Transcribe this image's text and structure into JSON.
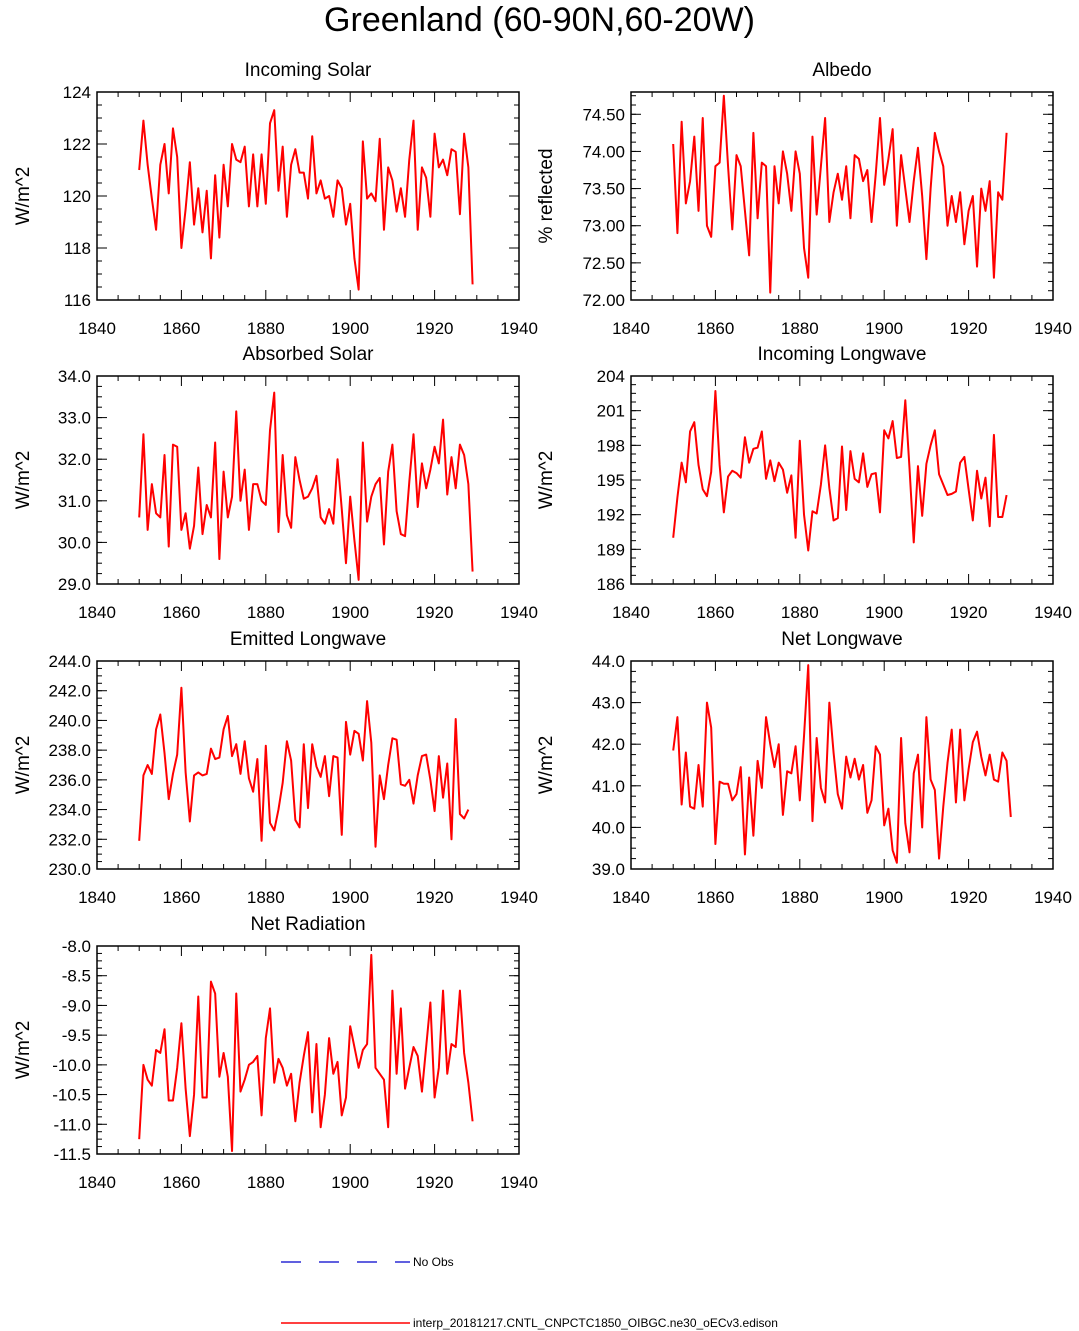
{
  "title": "Greenland (60-90N,60-20W)",
  "colors": {
    "model": "#ff0000",
    "obs": "#0000cc",
    "axis": "#000000"
  },
  "legend": {
    "obs_label": "No Obs",
    "model_label": "interp_20181217.CNTL_CNPCTC1850_OIBGC.ne30_oECv3.edison"
  },
  "chart_data": [
    {
      "type": "line",
      "title": "Incoming Solar",
      "ylabel": "W/m^2",
      "ylabel_side": "left",
      "xlim": [
        1840,
        1940
      ],
      "ylim": [
        116,
        124
      ],
      "xticks": [
        1840,
        1860,
        1880,
        1900,
        1920,
        1940
      ],
      "yticks": [
        116,
        118,
        120,
        122,
        124
      ],
      "yticklabels": [
        "116",
        "118",
        "120",
        "122",
        "124"
      ],
      "x_start": 1850,
      "series": [
        {
          "name": "interp_20181217.CNTL_CNPCTC1850_OIBGC.ne30_oECv3.edison",
          "values": [
            121.0,
            122.9,
            121.2,
            119.9,
            118.7,
            121.2,
            122.0,
            120.1,
            122.6,
            121.5,
            118.0,
            119.5,
            121.3,
            118.9,
            120.3,
            118.6,
            120.2,
            117.6,
            120.8,
            118.4,
            121.2,
            119.6,
            122.0,
            121.4,
            121.3,
            121.9,
            119.6,
            121.6,
            119.6,
            121.6,
            119.7,
            122.8,
            123.3,
            120.2,
            121.9,
            119.2,
            121.2,
            121.8,
            120.9,
            120.9,
            119.9,
            122.3,
            120.1,
            120.6,
            119.9,
            120.0,
            119.2,
            120.6,
            120.3,
            118.9,
            119.7,
            117.6,
            116.4,
            122.1,
            119.9,
            120.1,
            119.8,
            122.2,
            118.7,
            121.1,
            120.6,
            119.4,
            120.3,
            119.2,
            121.4,
            122.9,
            118.7,
            121.1,
            120.7,
            119.2,
            122.4,
            121.1,
            121.4,
            120.8,
            121.8,
            121.7,
            119.3,
            122.4,
            121.1,
            116.6
          ]
        }
      ]
    },
    {
      "type": "line",
      "title": "Albedo",
      "ylabel": "% reflected",
      "ylabel_side": "left",
      "xlim": [
        1840,
        1940
      ],
      "ylim": [
        72.0,
        74.8
      ],
      "xticks": [
        1840,
        1860,
        1880,
        1900,
        1920,
        1940
      ],
      "yticks": [
        72.0,
        72.5,
        73.0,
        73.5,
        74.0,
        74.5
      ],
      "yticklabels": [
        "72.00",
        "72.50",
        "73.00",
        "73.50",
        "74.00",
        "74.50"
      ],
      "x_start": 1850,
      "series": [
        {
          "name": "interp_20181217.CNTL_CNPCTC1850_OIBGC.ne30_oECv3.edison",
          "values": [
            74.1,
            72.9,
            74.4,
            73.3,
            73.6,
            74.2,
            73.2,
            74.45,
            73.0,
            72.85,
            73.8,
            73.85,
            74.75,
            73.8,
            72.95,
            73.95,
            73.8,
            73.2,
            72.6,
            74.25,
            73.1,
            73.85,
            73.8,
            72.1,
            73.8,
            73.3,
            74.0,
            73.7,
            73.2,
            74.0,
            73.7,
            72.7,
            72.3,
            74.2,
            73.15,
            73.8,
            74.45,
            73.05,
            73.45,
            73.7,
            73.35,
            73.8,
            73.1,
            73.95,
            73.9,
            73.6,
            73.75,
            73.05,
            73.7,
            74.45,
            73.55,
            73.9,
            74.3,
            73.0,
            73.95,
            73.5,
            73.05,
            73.6,
            74.05,
            73.4,
            72.55,
            73.5,
            74.25,
            74.0,
            73.8,
            73.0,
            73.4,
            73.05,
            73.45,
            72.75,
            73.2,
            73.4,
            72.45,
            73.5,
            73.2,
            73.6,
            72.3,
            73.45,
            73.35,
            74.25
          ]
        }
      ]
    },
    {
      "type": "line",
      "title": "Absorbed Solar",
      "ylabel": "W/m^2",
      "ylabel_side": "left",
      "xlim": [
        1840,
        1940
      ],
      "ylim": [
        29.0,
        34.0
      ],
      "xticks": [
        1840,
        1860,
        1880,
        1900,
        1920,
        1940
      ],
      "yticks": [
        29.0,
        30.0,
        31.0,
        32.0,
        33.0,
        34.0
      ],
      "yticklabels": [
        "29.0",
        "30.0",
        "31.0",
        "32.0",
        "33.0",
        "34.0"
      ],
      "x_start": 1850,
      "series": [
        {
          "name": "interp_20181217.CNTL_CNPCTC1850_OIBGC.ne30_oECv3.edison",
          "values": [
            30.6,
            32.6,
            30.3,
            31.4,
            30.7,
            30.6,
            32.1,
            29.9,
            32.35,
            32.3,
            30.3,
            30.7,
            29.85,
            30.4,
            31.8,
            30.2,
            30.9,
            30.6,
            32.4,
            29.6,
            31.7,
            30.6,
            31.1,
            33.15,
            31.0,
            31.75,
            30.3,
            31.4,
            31.4,
            31.0,
            30.9,
            32.7,
            33.6,
            30.25,
            32.1,
            30.65,
            30.35,
            32.05,
            31.5,
            31.05,
            31.1,
            31.3,
            31.6,
            30.6,
            30.45,
            30.8,
            30.45,
            32.0,
            30.8,
            29.5,
            31.1,
            30.05,
            29.1,
            32.4,
            30.5,
            31.1,
            31.4,
            31.55,
            29.95,
            31.7,
            32.35,
            30.75,
            30.2,
            30.15,
            31.45,
            32.6,
            30.85,
            31.9,
            31.3,
            31.75,
            32.3,
            31.9,
            32.95,
            31.15,
            32.05,
            31.3,
            32.35,
            32.1,
            31.4,
            29.3
          ]
        }
      ]
    },
    {
      "type": "line",
      "title": "Incoming Longwave",
      "ylabel": "W/m^2",
      "ylabel_side": "left",
      "xlim": [
        1840,
        1940
      ],
      "ylim": [
        186,
        204
      ],
      "xticks": [
        1840,
        1860,
        1880,
        1900,
        1920,
        1940
      ],
      "yticks": [
        186,
        189,
        192,
        195,
        198,
        201,
        204
      ],
      "yticklabels": [
        "186",
        "189",
        "192",
        "195",
        "198",
        "201",
        "204"
      ],
      "x_start": 1850,
      "series": [
        {
          "name": "interp_20181217.CNTL_CNPCTC1850_OIBGC.ne30_oECv3.edison",
          "values": [
            190.0,
            193.5,
            196.5,
            194.8,
            199.2,
            200.0,
            196.3,
            194.2,
            193.6,
            195.7,
            202.7,
            196.3,
            192.2,
            195.3,
            195.8,
            195.6,
            195.2,
            198.7,
            196.5,
            197.7,
            197.8,
            199.2,
            195.1,
            196.7,
            194.9,
            196.5,
            195.9,
            193.9,
            195.4,
            190.0,
            198.4,
            192.0,
            188.9,
            192.3,
            192.1,
            194.6,
            198.0,
            194.3,
            191.5,
            191.7,
            197.9,
            192.4,
            197.5,
            195.1,
            194.8,
            197.3,
            194.4,
            195.5,
            195.6,
            192.2,
            199.3,
            198.6,
            200.1,
            196.9,
            197.0,
            201.9,
            196.0,
            189.6,
            196.2,
            191.9,
            196.4,
            198.0,
            199.3,
            195.5,
            194.6,
            193.7,
            193.8,
            194.0,
            196.5,
            197.0,
            194.2,
            191.5,
            195.8,
            193.4,
            195.2,
            191.0,
            198.9,
            191.8,
            191.8,
            193.7
          ]
        }
      ]
    },
    {
      "type": "line",
      "title": "Emitted Longwave",
      "ylabel": "W/m^2",
      "ylabel_side": "left",
      "xlim": [
        1840,
        1940
      ],
      "ylim": [
        230,
        244
      ],
      "xticks": [
        1840,
        1860,
        1880,
        1900,
        1920,
        1940
      ],
      "yticks": [
        230,
        232,
        234,
        236,
        238,
        240,
        242,
        244
      ],
      "yticklabels": [
        "230.0",
        "232.0",
        "234.0",
        "236.0",
        "238.0",
        "240.0",
        "242.0",
        "244.0"
      ],
      "x_start": 1850,
      "series": [
        {
          "name": "interp_20181217.CNTL_CNPCTC1850_OIBGC.ne30_oECv3.edison",
          "values": [
            231.9,
            236.3,
            237.0,
            236.4,
            239.4,
            240.4,
            237.8,
            234.7,
            236.4,
            237.7,
            242.2,
            236.5,
            233.2,
            236.3,
            236.5,
            236.3,
            236.4,
            238.1,
            237.4,
            237.5,
            239.4,
            240.3,
            237.6,
            238.4,
            236.4,
            238.6,
            236.1,
            235.2,
            237.4,
            231.9,
            238.3,
            233.1,
            232.6,
            234.0,
            235.8,
            238.6,
            237.3,
            233.3,
            232.8,
            238.4,
            234.1,
            238.4,
            236.9,
            236.2,
            237.6,
            234.9,
            237.6,
            237.5,
            232.3,
            239.9,
            237.7,
            239.3,
            239.1,
            237.3,
            241.3,
            238.5,
            231.5,
            236.3,
            234.7,
            237.0,
            238.8,
            238.7,
            235.7,
            235.6,
            236.0,
            234.4,
            236.3,
            237.6,
            237.7,
            236.0,
            233.9,
            237.6,
            234.8,
            237.1,
            232.0,
            240.1,
            233.7,
            233.4,
            234.0
          ]
        }
      ]
    },
    {
      "type": "line",
      "title": "Net Longwave",
      "ylabel": "W/m^2",
      "ylabel_side": "left",
      "xlim": [
        1840,
        1940
      ],
      "ylim": [
        39.0,
        44.0
      ],
      "xticks": [
        1840,
        1860,
        1880,
        1900,
        1920,
        1940
      ],
      "yticks": [
        39.0,
        40.0,
        41.0,
        42.0,
        43.0,
        44.0
      ],
      "yticklabels": [
        "39.0",
        "40.0",
        "41.0",
        "42.0",
        "43.0",
        "44.0"
      ],
      "x_start": 1850,
      "series": [
        {
          "name": "interp_20181217.CNTL_CNPCTC1850_OIBGC.ne30_oECv3.edison",
          "values": [
            41.85,
            42.65,
            40.55,
            41.8,
            40.5,
            40.45,
            41.5,
            40.5,
            43.0,
            42.4,
            39.6,
            41.1,
            41.05,
            41.05,
            40.65,
            40.8,
            41.45,
            39.35,
            41.2,
            39.8,
            41.6,
            40.95,
            42.65,
            42.0,
            41.45,
            42.0,
            40.3,
            41.35,
            41.3,
            41.95,
            40.65,
            42.2,
            43.9,
            40.15,
            42.15,
            40.95,
            40.6,
            43.0,
            41.8,
            40.8,
            40.45,
            41.7,
            41.2,
            41.65,
            41.15,
            41.5,
            40.35,
            40.65,
            41.95,
            41.75,
            40.05,
            40.45,
            39.45,
            39.15,
            42.15,
            40.1,
            39.4,
            41.3,
            41.75,
            40.0,
            42.65,
            41.15,
            40.9,
            39.25,
            40.5,
            41.55,
            42.35,
            40.6,
            42.35,
            40.65,
            41.4,
            42.05,
            42.3,
            41.7,
            41.25,
            41.75,
            41.15,
            41.1,
            41.8,
            41.6,
            40.25
          ]
        }
      ]
    },
    {
      "type": "line",
      "title": "Net Radiation",
      "ylabel": "W/m^2",
      "ylabel_side": "left",
      "xlim": [
        1840,
        1940
      ],
      "ylim": [
        -11.5,
        -8.0
      ],
      "xticks": [
        1840,
        1860,
        1880,
        1900,
        1920,
        1940
      ],
      "yticks": [
        -11.5,
        -11.0,
        -10.5,
        -10.0,
        -9.5,
        -9.0,
        -8.5,
        -8.0
      ],
      "yticklabels": [
        "-11.5",
        "-11.0",
        "-10.5",
        "-10.0",
        "-9.5",
        "-9.0",
        "-8.5",
        "-8.0"
      ],
      "x_start": 1850,
      "series": [
        {
          "name": "interp_20181217.CNTL_CNPCTC1850_OIBGC.ne30_oECv3.edison",
          "values": [
            -11.25,
            -10.0,
            -10.25,
            -10.35,
            -9.75,
            -9.8,
            -9.4,
            -10.6,
            -10.6,
            -10.05,
            -9.3,
            -10.4,
            -11.2,
            -10.5,
            -8.85,
            -10.55,
            -10.55,
            -8.6,
            -8.8,
            -10.2,
            -9.8,
            -10.2,
            -11.45,
            -8.8,
            -10.45,
            -10.25,
            -10.0,
            -9.95,
            -9.85,
            -10.85,
            -9.55,
            -9.05,
            -10.3,
            -9.9,
            -10.05,
            -10.35,
            -10.15,
            -10.95,
            -10.3,
            -9.85,
            -9.45,
            -10.8,
            -9.65,
            -11.05,
            -10.5,
            -9.55,
            -10.15,
            -9.95,
            -10.85,
            -10.55,
            -9.35,
            -9.7,
            -10.05,
            -9.75,
            -9.65,
            -8.15,
            -10.05,
            -10.15,
            -10.25,
            -11.05,
            -8.75,
            -10.15,
            -9.05,
            -10.4,
            -10.05,
            -9.7,
            -9.85,
            -10.45,
            -9.7,
            -8.95,
            -10.55,
            -10.05,
            -8.75,
            -10.15,
            -9.65,
            -9.7,
            -8.75,
            -9.8,
            -10.3,
            -10.95
          ]
        }
      ]
    }
  ]
}
